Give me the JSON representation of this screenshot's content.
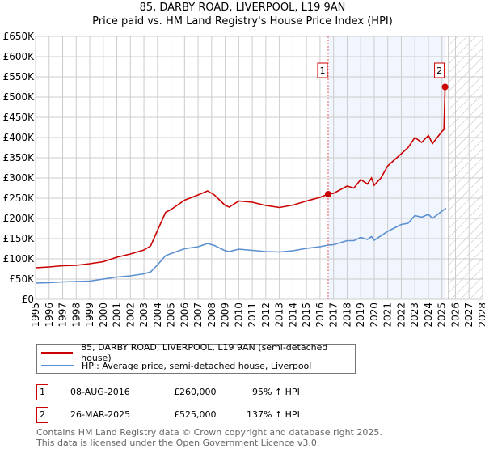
{
  "chart_data": {
    "type": "line",
    "title": "85, DARBY ROAD, LIVERPOOL, L19 9AN",
    "subtitle": "Price paid vs. HM Land Registry's House Price Index (HPI)",
    "xlim": [
      1995,
      2028
    ],
    "ylim": [
      0,
      650000
    ],
    "y_ticks": [
      0,
      50000,
      100000,
      150000,
      200000,
      250000,
      300000,
      350000,
      400000,
      450000,
      500000,
      550000,
      600000,
      650000
    ],
    "y_tick_labels": [
      "£0",
      "£50K",
      "£100K",
      "£150K",
      "£200K",
      "£250K",
      "£300K",
      "£350K",
      "£400K",
      "£450K",
      "£500K",
      "£550K",
      "£600K",
      "£650K"
    ],
    "x_ticks": [
      1995,
      1996,
      1997,
      1998,
      1999,
      2000,
      2001,
      2002,
      2003,
      2004,
      2005,
      2006,
      2007,
      2008,
      2009,
      2010,
      2011,
      2012,
      2013,
      2014,
      2015,
      2016,
      2017,
      2018,
      2019,
      2020,
      2021,
      2022,
      2023,
      2024,
      2025,
      2026,
      2027,
      2028
    ],
    "grid": true,
    "legend_position": "bottom",
    "shaded_range": [
      2016.6,
      2025.23
    ],
    "forecast_hatch_from": 2025.5,
    "series": [
      {
        "name": "85, DARBY ROAD, LIVERPOOL, L19 9AN (semi-detached house)",
        "color": "#cc0000",
        "x": [
          1995,
          1996,
          1997,
          1998,
          1999,
          2000,
          2001,
          2002,
          2003,
          2003.5,
          2004,
          2004.6,
          2005,
          2006,
          2007,
          2007.7,
          2008.2,
          2009,
          2009.3,
          2010,
          2011,
          2012,
          2013,
          2014,
          2015,
          2016,
          2016.6,
          2017,
          2018,
          2018.5,
          2019,
          2019.5,
          2019.8,
          2020,
          2020.5,
          2021,
          2022,
          2022.5,
          2023,
          2023.5,
          2024,
          2024.3,
          2025,
          2025.15,
          2025.23
        ],
        "y": [
          78000,
          80000,
          83000,
          84000,
          88000,
          93000,
          104000,
          112000,
          122000,
          132000,
          170000,
          215000,
          222000,
          245000,
          258000,
          268000,
          258000,
          232000,
          228000,
          243000,
          240000,
          232000,
          227000,
          233000,
          243000,
          252000,
          260000,
          262000,
          280000,
          275000,
          296000,
          285000,
          300000,
          282000,
          300000,
          330000,
          360000,
          375000,
          400000,
          388000,
          405000,
          385000,
          415000,
          420000,
          525000
        ]
      },
      {
        "name": "HPI: Average price, semi-detached house, Liverpool",
        "color": "#5b8fd0",
        "x": [
          1995,
          1996,
          1997,
          1998,
          1999,
          2000,
          2001,
          2002,
          2003,
          2003.5,
          2004,
          2004.6,
          2005,
          2006,
          2007,
          2007.7,
          2008.2,
          2009,
          2009.3,
          2010,
          2011,
          2012,
          2013,
          2014,
          2015,
          2016,
          2016.6,
          2017,
          2018,
          2018.5,
          2019,
          2019.5,
          2019.8,
          2020,
          2021,
          2022,
          2022.5,
          2023,
          2023.5,
          2024,
          2024.3,
          2025,
          2025.3
        ],
        "y": [
          40000,
          41000,
          43000,
          44000,
          45000,
          50000,
          55000,
          58000,
          63000,
          68000,
          85000,
          108000,
          113000,
          125000,
          130000,
          138000,
          133000,
          120000,
          118000,
          124000,
          121000,
          118000,
          117000,
          120000,
          126000,
          130000,
          134000,
          135000,
          145000,
          145000,
          153000,
          148000,
          155000,
          146000,
          168000,
          185000,
          188000,
          207000,
          203000,
          210000,
          200000,
          218000,
          225000
        ]
      }
    ],
    "annotations": [
      {
        "label": "1",
        "x": 2016.6,
        "y": 260000
      },
      {
        "label": "2",
        "x": 2025.23,
        "y": 525000
      }
    ]
  },
  "header": {
    "title": "85, DARBY ROAD, LIVERPOOL, L19 9AN",
    "subtitle": "Price paid vs. HM Land Registry's House Price Index (HPI)"
  },
  "legend": {
    "items": [
      {
        "label": "85, DARBY ROAD, LIVERPOOL, L19 9AN (semi-detached house)",
        "color": "#cc0000"
      },
      {
        "label": "HPI: Average price, semi-detached house, Liverpool",
        "color": "#5b8fd0"
      }
    ]
  },
  "transactions": [
    {
      "num": "1",
      "date": "08-AUG-2016",
      "price": "£260,000",
      "hpi": "95% ↑ HPI"
    },
    {
      "num": "2",
      "date": "26-MAR-2025",
      "price": "£525,000",
      "hpi": "137% ↑ HPI"
    }
  ],
  "footer": {
    "line1": "Contains HM Land Registry data © Crown copyright and database right 2025.",
    "line2": "This data is licensed under the Open Government Licence v3.0."
  }
}
